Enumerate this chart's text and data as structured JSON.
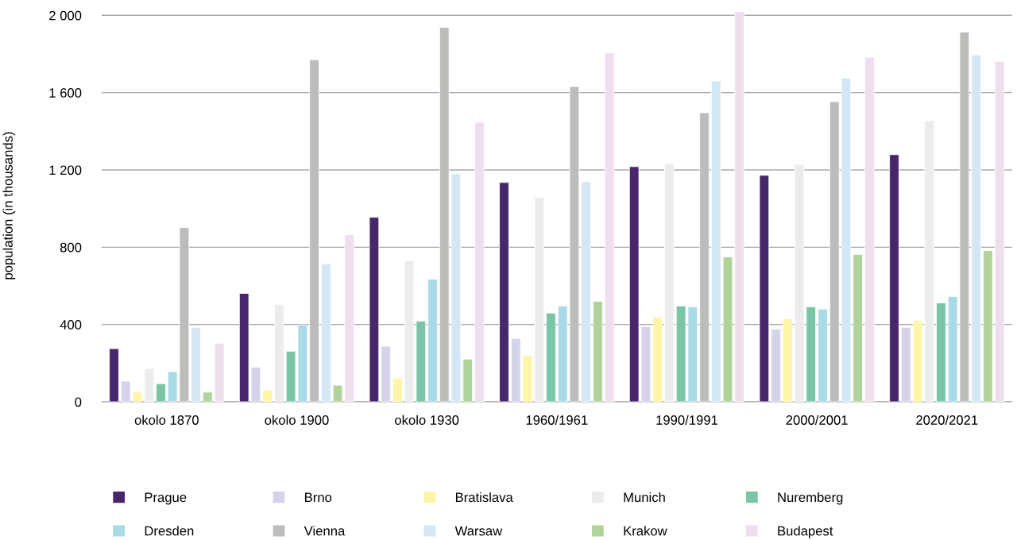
{
  "chart_data": {
    "type": "bar",
    "ylabel": "population (in thousands)",
    "categories": [
      "okolo 1870",
      "okolo 1900",
      "okolo 1930",
      "1960/1961",
      "1990/1991",
      "2000/2001",
      "2020/2021"
    ],
    "series": [
      {
        "name": "Prague",
        "color": "#48266b",
        "values": [
          275,
          561,
          955,
          1135,
          1217,
          1172,
          1279
        ]
      },
      {
        "name": "Brno",
        "color": "#d5d3ea",
        "values": [
          107,
          180,
          287,
          328,
          389,
          377,
          385
        ]
      },
      {
        "name": "Bratislava",
        "color": "#fff5a8",
        "values": [
          50,
          62,
          123,
          238,
          439,
          430,
          422
        ]
      },
      {
        "name": "Munich",
        "color": "#ececec",
        "values": [
          172,
          504,
          729,
          1057,
          1233,
          1229,
          1455
        ]
      },
      {
        "name": "Nuremberg",
        "color": "#7bc5a7",
        "values": [
          94,
          262,
          418,
          459,
          496,
          492,
          512
        ]
      },
      {
        "name": "Dresden",
        "color": "#a8dae8",
        "values": [
          156,
          398,
          635,
          496,
          492,
          480,
          545
        ]
      },
      {
        "name": "Vienna",
        "color": "#bcbcbb",
        "values": [
          902,
          1770,
          1938,
          1631,
          1496,
          1553,
          1914
        ]
      },
      {
        "name": "Warsaw",
        "color": "#d3e7f4",
        "values": [
          385,
          713,
          1180,
          1139,
          1660,
          1676,
          1795
        ]
      },
      {
        "name": "Krakow",
        "color": "#b0d39b",
        "values": [
          50,
          86,
          221,
          520,
          750,
          762,
          783
        ]
      },
      {
        "name": "Budapest",
        "color": "#eedeee",
        "values": [
          303,
          865,
          1447,
          1807,
          2020,
          1783,
          1762
        ]
      }
    ],
    "ylim": [
      0,
      2030
    ],
    "yticks": [
      {
        "value": 0,
        "label": "0"
      },
      {
        "value": 400,
        "label": "400"
      },
      {
        "value": 800,
        "label": "800"
      },
      {
        "value": 1200,
        "label": "1 200"
      },
      {
        "value": 1600,
        "label": "1 600"
      },
      {
        "value": 2000,
        "label": "2 000"
      }
    ],
    "grid": "y",
    "legend": "bottom"
  }
}
